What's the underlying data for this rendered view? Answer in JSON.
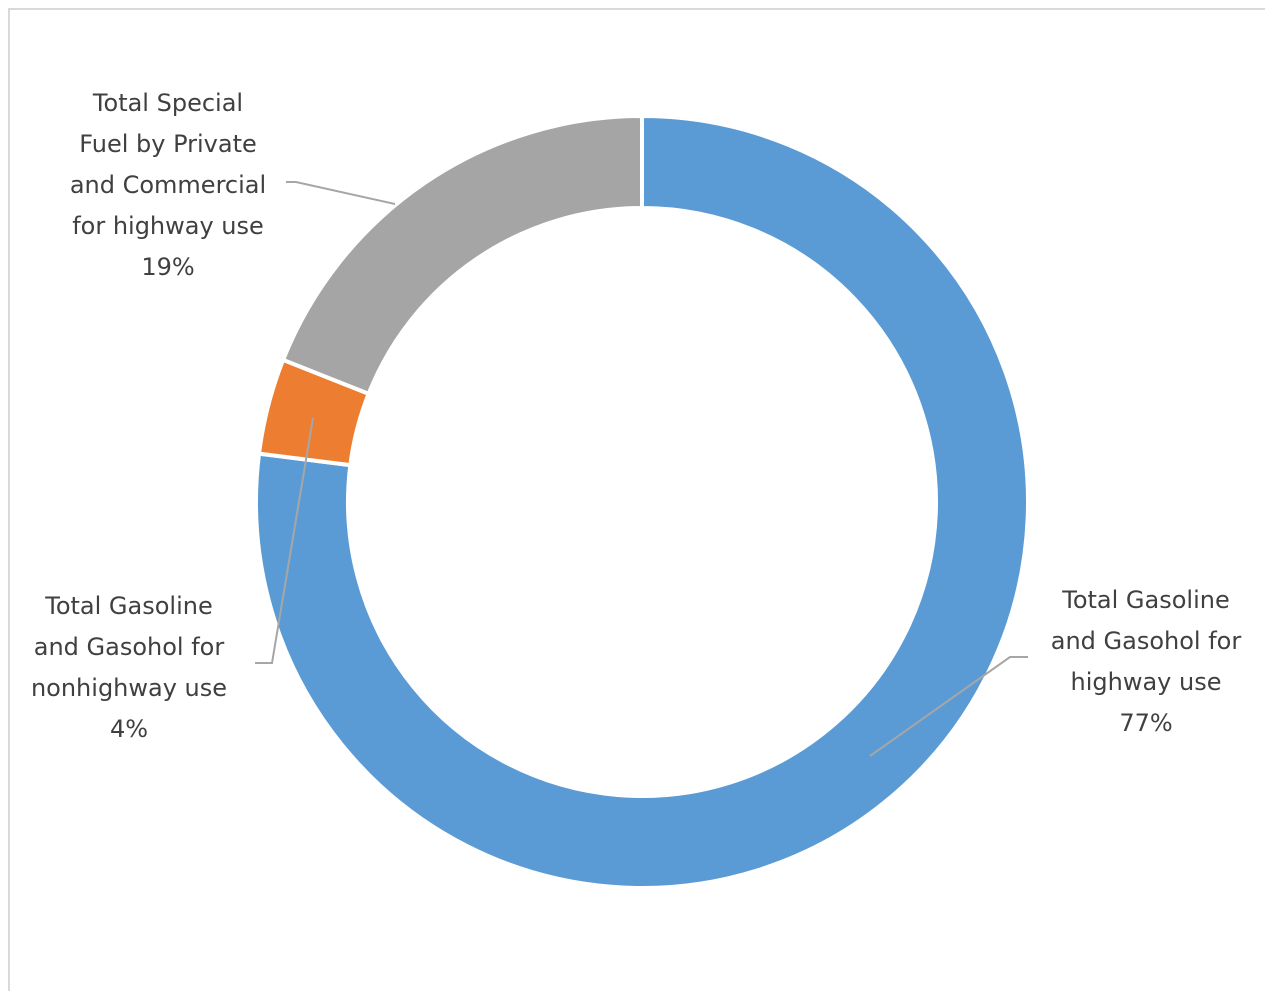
{
  "chart_data": {
    "type": "pie",
    "donut": true,
    "title": "",
    "legend": "none",
    "slices": [
      {
        "label": [
          "Total Gasoline",
          "and Gasohol for",
          "highway use"
        ],
        "pct_label": "77%",
        "value": 77,
        "color": "#5b9bd5"
      },
      {
        "label": [
          "Total Gasoline",
          "and Gasohol for",
          "nonhighway use"
        ],
        "pct_label": "4%",
        "value": 4,
        "color": "#ed7d31"
      },
      {
        "label": [
          "Total Special",
          "Fuel by Private",
          "and Commercial",
          "for highway use"
        ],
        "pct_label": "19%",
        "value": 19,
        "color": "#a5a5a5"
      }
    ]
  }
}
